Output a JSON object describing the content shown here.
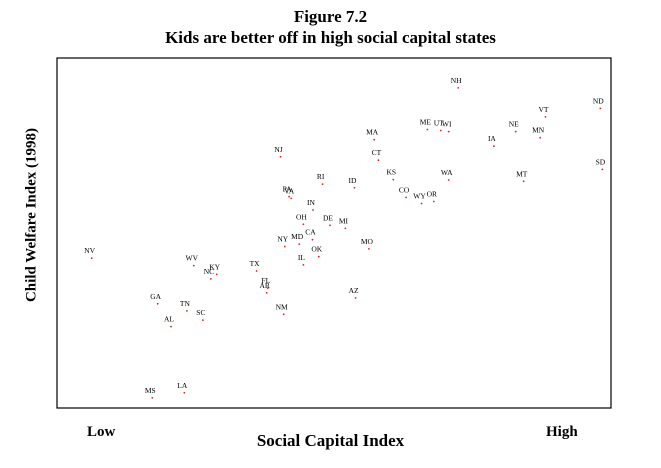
{
  "figure_number": "Figure 7.2",
  "chart_data": {
    "type": "scatter",
    "title": "Kids are better off in high social capital states",
    "xlabel": "Social Capital Index",
    "ylabel": "Child Welfare Index (1998)",
    "x_low_label": "Low",
    "x_high_label": "High",
    "xlim": [
      0,
      100
    ],
    "ylim": [
      0,
      100
    ],
    "grid": false,
    "legend": "none",
    "point_color": "#e02020",
    "points": [
      {
        "label": "NH",
        "x": 72.6,
        "y": 92.4
      },
      {
        "label": "ND",
        "x": 99.3,
        "y": 86.4
      },
      {
        "label": "VT",
        "x": 89.0,
        "y": 83.9
      },
      {
        "label": "ME",
        "x": 66.8,
        "y": 80.2
      },
      {
        "label": "UT",
        "x": 69.3,
        "y": 79.9
      },
      {
        "label": "WI",
        "x": 70.8,
        "y": 79.6
      },
      {
        "label": "NE",
        "x": 83.4,
        "y": 79.6
      },
      {
        "label": "MN",
        "x": 88.0,
        "y": 77.8
      },
      {
        "label": "MA",
        "x": 56.8,
        "y": 77.2
      },
      {
        "label": "IA",
        "x": 79.3,
        "y": 75.3
      },
      {
        "label": "CT",
        "x": 57.6,
        "y": 71.2
      },
      {
        "label": "NJ",
        "x": 39.2,
        "y": 72.2
      },
      {
        "label": "SD",
        "x": 99.7,
        "y": 68.5
      },
      {
        "label": "KS",
        "x": 60.4,
        "y": 65.5
      },
      {
        "label": "WA",
        "x": 70.8,
        "y": 65.4
      },
      {
        "label": "MT",
        "x": 84.9,
        "y": 65.0
      },
      {
        "label": "RI",
        "x": 47.1,
        "y": 64.2
      },
      {
        "label": "ID",
        "x": 53.1,
        "y": 63.1
      },
      {
        "label": "CO",
        "x": 62.8,
        "y": 60.3
      },
      {
        "label": "OR",
        "x": 68.0,
        "y": 59.1
      },
      {
        "label": "WY",
        "x": 65.7,
        "y": 58.5
      },
      {
        "label": "VA",
        "x": 41.2,
        "y": 60.0
      },
      {
        "label": "PA",
        "x": 40.8,
        "y": 60.5
      },
      {
        "label": "IN",
        "x": 45.3,
        "y": 56.6
      },
      {
        "label": "OH",
        "x": 43.5,
        "y": 52.4
      },
      {
        "label": "DE",
        "x": 48.5,
        "y": 52.1
      },
      {
        "label": "MI",
        "x": 51.4,
        "y": 51.2
      },
      {
        "label": "CA",
        "x": 45.2,
        "y": 47.9
      },
      {
        "label": "MD",
        "x": 42.7,
        "y": 46.6
      },
      {
        "label": "NY",
        "x": 40.0,
        "y": 45.9
      },
      {
        "label": "MO",
        "x": 55.8,
        "y": 45.2
      },
      {
        "label": "OK",
        "x": 46.4,
        "y": 42.9
      },
      {
        "label": "IL",
        "x": 43.5,
        "y": 40.5
      },
      {
        "label": "NV",
        "x": 3.7,
        "y": 42.5
      },
      {
        "label": "WV",
        "x": 22.9,
        "y": 40.3
      },
      {
        "label": "KY",
        "x": 27.2,
        "y": 37.7
      },
      {
        "label": "NC",
        "x": 26.1,
        "y": 36.4
      },
      {
        "label": "TX",
        "x": 34.7,
        "y": 38.7
      },
      {
        "label": "FL",
        "x": 36.8,
        "y": 33.7
      },
      {
        "label": "AR",
        "x": 36.6,
        "y": 32.3
      },
      {
        "label": "AZ",
        "x": 53.3,
        "y": 30.8
      },
      {
        "label": "GA",
        "x": 16.1,
        "y": 29.1
      },
      {
        "label": "TN",
        "x": 21.6,
        "y": 27.0
      },
      {
        "label": "SC",
        "x": 24.6,
        "y": 24.3
      },
      {
        "label": "NM",
        "x": 39.8,
        "y": 26.0
      },
      {
        "label": "AL",
        "x": 18.6,
        "y": 22.4
      },
      {
        "label": "MS",
        "x": 15.1,
        "y": 1.5
      },
      {
        "label": "LA",
        "x": 21.1,
        "y": 3.0
      }
    ]
  }
}
